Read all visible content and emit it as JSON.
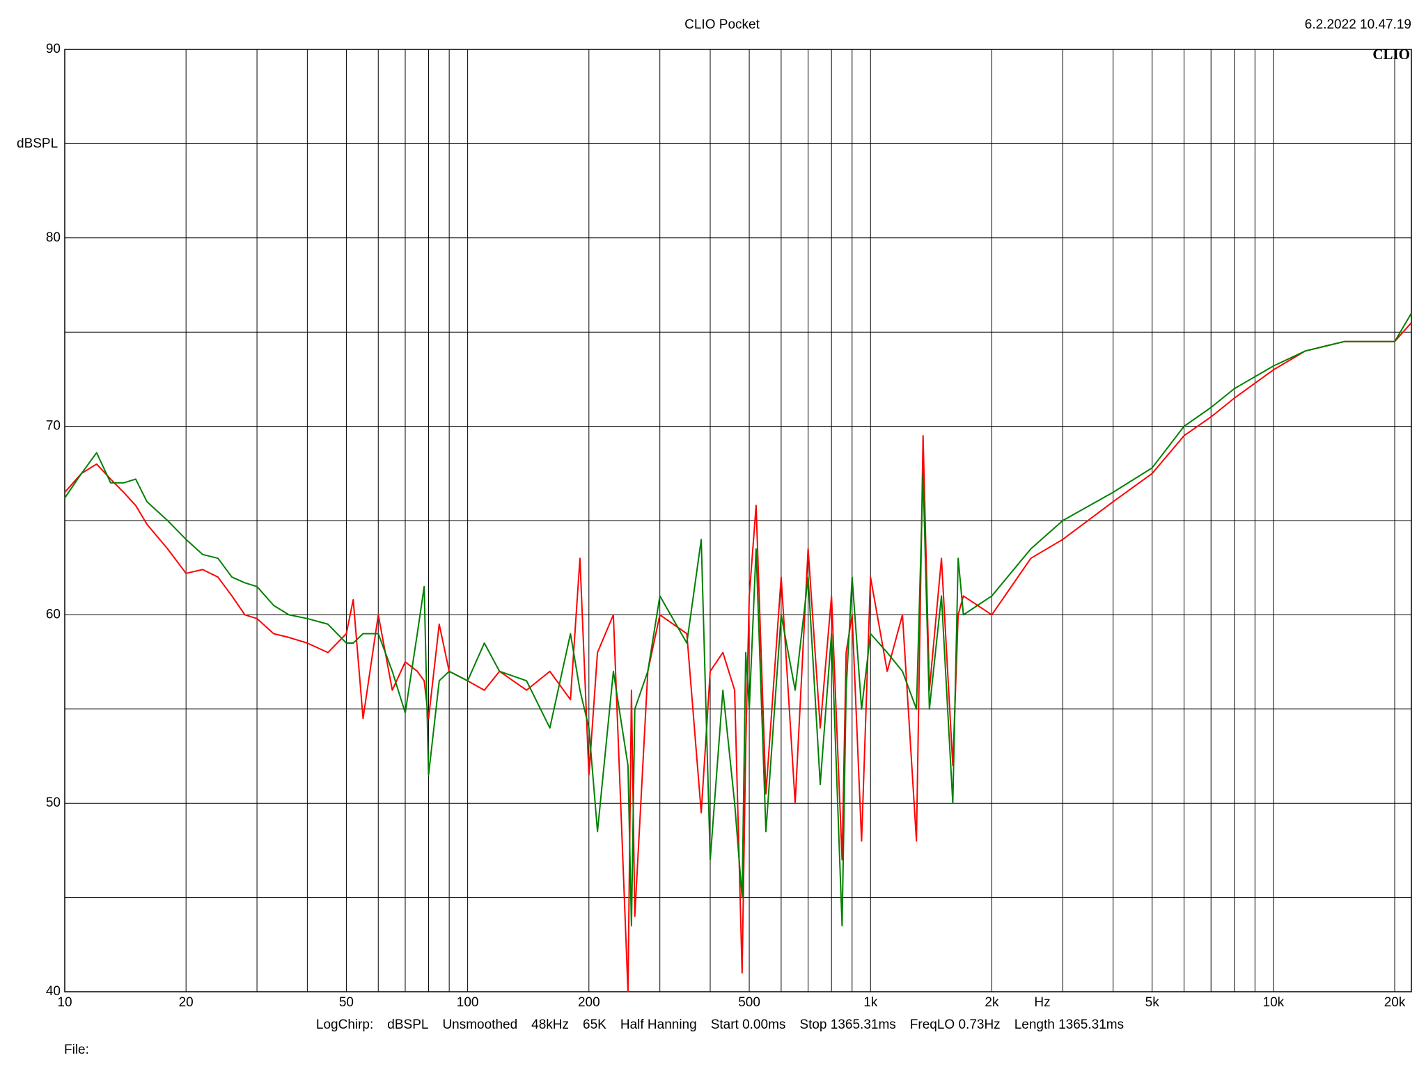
{
  "chart_data": {
    "type": "line",
    "title": "CLIO Pocket",
    "timestamp": "6.2.2022 10.47.19",
    "logo": "CLIO",
    "ylabel": "dBSPL",
    "xlabel": "Hz",
    "footer": [
      "LogChirp:",
      "dBSPL",
      "Unsmoothed",
      "48kHz",
      "65K",
      "Half Hanning",
      "Start 0.00ms",
      "Stop 1365.31ms",
      "FreqLO 0.73Hz",
      "Length 1365.31ms"
    ],
    "file_label": "File:",
    "xlog": true,
    "grid": true,
    "xlim": [
      10,
      22000
    ],
    "ylim": [
      40,
      90
    ],
    "xticks": [
      10,
      20,
      50,
      100,
      200,
      500,
      {
        "value": 1000,
        "label": "1k"
      },
      {
        "value": 2000,
        "label": "2k"
      },
      {
        "value": 5000,
        "label": "5k"
      },
      {
        "value": 10000,
        "label": "10k"
      },
      {
        "value": 20000,
        "label": "20k"
      }
    ],
    "xminor": [
      30,
      40,
      60,
      70,
      80,
      90,
      300,
      400,
      600,
      700,
      800,
      900,
      3000,
      4000,
      6000,
      7000,
      8000,
      9000
    ],
    "yticks": [
      40,
      50,
      60,
      70,
      80,
      90
    ],
    "yminor": [
      45,
      55,
      65,
      75,
      85
    ],
    "x": [
      10,
      11,
      12,
      13,
      14,
      15,
      16,
      18,
      20,
      22,
      24,
      26,
      28,
      30,
      33,
      36,
      40,
      45,
      50,
      52,
      55,
      60,
      65,
      70,
      75,
      78,
      80,
      85,
      90,
      100,
      110,
      120,
      140,
      160,
      180,
      190,
      200,
      210,
      230,
      250,
      255,
      260,
      280,
      300,
      350,
      380,
      400,
      430,
      460,
      480,
      490,
      500,
      520,
      550,
      600,
      650,
      700,
      750,
      800,
      850,
      870,
      900,
      950,
      1000,
      1100,
      1200,
      1300,
      1350,
      1400,
      1500,
      1600,
      1650,
      1700,
      2000,
      2500,
      3000,
      4000,
      5000,
      6000,
      7000,
      8000,
      10000,
      12000,
      15000,
      20000,
      22000
    ],
    "series": [
      {
        "color": "#ff0000",
        "values": [
          66.5,
          67.5,
          68,
          67.2,
          66.5,
          65.8,
          64.8,
          63.5,
          62.2,
          62.4,
          62,
          61,
          60,
          59.8,
          59,
          58.8,
          58.5,
          58,
          59,
          60.8,
          54.5,
          60,
          56,
          57.5,
          57,
          56.5,
          54.5,
          59.5,
          57,
          56.5,
          56,
          57,
          56,
          57,
          55.5,
          63,
          51.5,
          58,
          60,
          40,
          56,
          44,
          57,
          60,
          59,
          49.5,
          57,
          58,
          56,
          41,
          53,
          61,
          65.8,
          50.5,
          62,
          50,
          63.5,
          54,
          61,
          47,
          58,
          60,
          48,
          62,
          57,
          60,
          48,
          69.5,
          56,
          63,
          52,
          60,
          61,
          60,
          63,
          64,
          66,
          67.5,
          69.5,
          70.5,
          71.5,
          73,
          74,
          74.5,
          74.5,
          75.5
        ]
      },
      {
        "color": "#008000",
        "values": [
          66.2,
          67.5,
          68.6,
          67,
          67,
          67.2,
          66,
          65,
          64,
          63.2,
          63,
          62,
          61.7,
          61.5,
          60.5,
          60,
          59.8,
          59.5,
          58.5,
          58.5,
          59,
          59,
          57,
          54.8,
          59,
          61.5,
          51.5,
          56.5,
          57,
          56.5,
          58.5,
          57,
          56.5,
          54,
          59,
          56,
          54,
          48.5,
          57,
          52,
          43.5,
          55,
          57,
          61,
          58.5,
          64,
          47,
          56,
          50,
          45,
          58,
          55,
          63.5,
          48.5,
          60,
          56,
          62,
          51,
          59,
          43.5,
          56,
          62,
          55,
          59,
          58,
          57,
          55,
          67.5,
          55,
          61,
          50,
          63,
          60,
          61,
          63.5,
          65,
          66.5,
          67.8,
          70,
          71,
          72,
          73.2,
          74,
          74.5,
          74.5,
          76
        ]
      }
    ]
  }
}
